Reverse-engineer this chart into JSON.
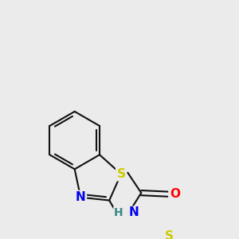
{
  "bg_color": "#ebebeb",
  "atom_colors": {
    "S": "#cccc00",
    "N": "#0000ee",
    "O": "#ff0000",
    "C": "#000000",
    "H": "#3a8888"
  },
  "bond_color": "#111111",
  "bond_lw": 1.5,
  "font_size": 11,
  "font_size_h": 10
}
